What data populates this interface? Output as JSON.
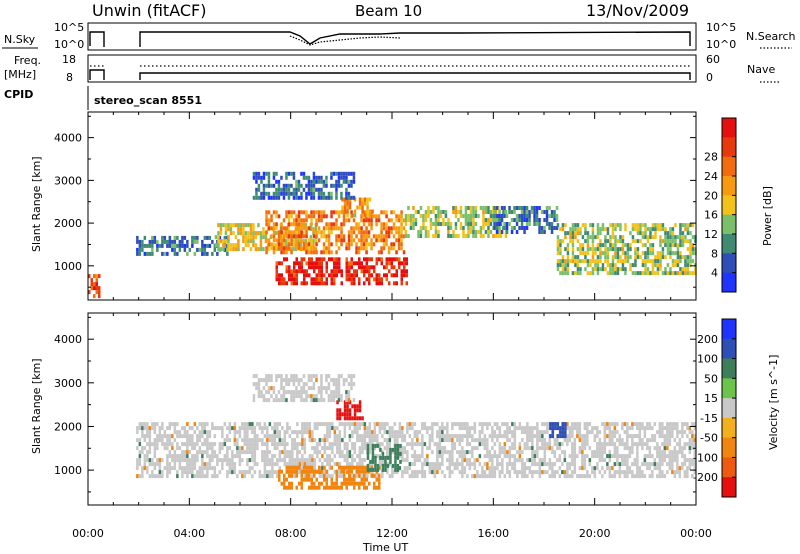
{
  "header": {
    "station": "Unwin (fitACF)",
    "beam": "Beam 10",
    "date": "13/Nov/2009"
  },
  "noise_panel": {
    "left_label": "N.Sky",
    "right_label": "N.Search",
    "ticks": [
      "10^5",
      "10^0"
    ]
  },
  "freq_panel": {
    "left_label_1": "Freq.",
    "left_label_2": "[MHz]",
    "left_ticks": [
      "18",
      "8"
    ],
    "right_label": "Nave",
    "right_ticks": [
      "60",
      "0"
    ]
  },
  "cpid": {
    "label": "CPID",
    "value": "stereo_scan 8551"
  },
  "colors": {
    "power": [
      "#1f35ff",
      "#2d4fb6",
      "#3f8a72",
      "#7bbf6a",
      "#f3c21a",
      "#f79a10",
      "#f26b0e",
      "#e8380d",
      "#e60f0f"
    ],
    "velocity_pos": [
      "#1f35ff",
      "#2d4fb6",
      "#3c7f5a",
      "#6cc44a"
    ],
    "velocity_zero": "#c8c8c8",
    "velocity_neg": [
      "#f3b01e",
      "#f0850f",
      "#ee5a10",
      "#e61010"
    ]
  },
  "chart_data": [
    {
      "type": "heatmap",
      "name": "power",
      "ylabel": "Slant Range [km]",
      "xlabel": "Time UT",
      "xlim": [
        0,
        24
      ],
      "ylim": [
        200,
        4600
      ],
      "yticks": [
        "1000",
        "2000",
        "3000",
        "4000"
      ],
      "xticks": [
        "00:00",
        "04:00",
        "08:00",
        "12:00",
        "16:00",
        "20:00",
        "00:00"
      ],
      "colorbar": {
        "label": "Power [dB]",
        "ticks": [
          "4",
          "8",
          "12",
          "16",
          "20",
          "24",
          "28"
        ]
      },
      "bands": [
        {
          "t": [
            0.0,
            0.4
          ],
          "r": [
            300,
            900
          ],
          "level": 0.8
        },
        {
          "t": [
            1.9,
            5.5
          ],
          "r": [
            1300,
            1700
          ],
          "level": 0.2
        },
        {
          "t": [
            5.0,
            9.0
          ],
          "r": [
            1400,
            2000
          ],
          "level": 0.5
        },
        {
          "t": [
            7.0,
            12.5
          ],
          "r": [
            1300,
            2300
          ],
          "level": 0.7
        },
        {
          "t": [
            7.4,
            12.6
          ],
          "r": [
            600,
            1200
          ],
          "level": 0.95
        },
        {
          "t": [
            10.0,
            11.2
          ],
          "r": [
            2200,
            2600
          ],
          "level": 0.6
        },
        {
          "t": [
            12.5,
            16.5
          ],
          "r": [
            1700,
            2400
          ],
          "level": 0.4
        },
        {
          "t": [
            16.0,
            18.5
          ],
          "r": [
            1800,
            2400
          ],
          "level": 0.2
        },
        {
          "t": [
            18.5,
            24.0
          ],
          "r": [
            800,
            2000
          ],
          "level": 0.4
        },
        {
          "t": [
            6.5,
            10.5
          ],
          "r": [
            2600,
            3200
          ],
          "level": 0.15
        }
      ]
    },
    {
      "type": "heatmap",
      "name": "velocity",
      "ylabel": "Slant Range [km]",
      "xlabel": "Time UT",
      "xlim": [
        0,
        24
      ],
      "ylim": [
        200,
        4600
      ],
      "yticks": [
        "1000",
        "2000",
        "3000",
        "4000"
      ],
      "xticks": [
        "00:00",
        "04:00",
        "08:00",
        "12:00",
        "16:00",
        "20:00",
        "00:00"
      ],
      "colorbar": {
        "label": "Velocity [m s^-1]",
        "ticks": [
          "200",
          "100",
          "50",
          "15",
          "-15",
          "-50",
          "-100",
          "-200"
        ]
      },
      "bands": [
        {
          "t": [
            1.9,
            24.0
          ],
          "r": [
            900,
            2100
          ],
          "v": 0
        },
        {
          "t": [
            7.5,
            11.5
          ],
          "r": [
            600,
            1100
          ],
          "v": -50
        },
        {
          "t": [
            11.0,
            12.3
          ],
          "r": [
            1000,
            1600
          ],
          "v": 50
        },
        {
          "t": [
            9.8,
            10.8
          ],
          "r": [
            2200,
            2600
          ],
          "v": -200
        },
        {
          "t": [
            18.2,
            18.8
          ],
          "r": [
            1800,
            2100
          ],
          "v": 100
        },
        {
          "t": [
            6.5,
            10.5
          ],
          "r": [
            2600,
            3200
          ],
          "v": 0
        }
      ]
    }
  ]
}
